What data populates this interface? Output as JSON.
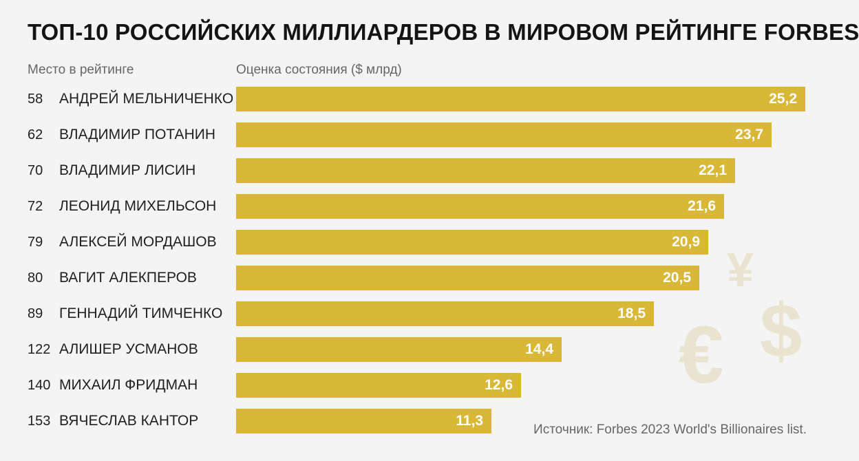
{
  "title": "ТОП-10 РОССИЙСКИХ МИЛЛИАРДЕРОВ В МИРОВОМ РЕЙТИНГЕ FORBES",
  "rank_header": "Место в рейтинге",
  "value_header": "Оценка состояния ($ млрд)",
  "source": "Источник: Forbes 2023 World's Billionaires list.",
  "decor_icons": [
    {
      "name": "yen-icon",
      "glyph": "¥"
    },
    {
      "name": "dollar-icon",
      "glyph": "$"
    },
    {
      "name": "euro-icon",
      "glyph": "€"
    }
  ],
  "colors": {
    "bar": "#d9b737",
    "background": "#f4f4f4"
  },
  "chart_data": {
    "type": "bar",
    "orientation": "horizontal",
    "title": "ТОП-10 РОССИЙСКИХ МИЛЛИАРДЕРОВ В МИРОВОМ РЕЙТИНГЕ FORBES",
    "xlabel": "Оценка состояния ($ млрд)",
    "ylabel": "Место в рейтинге",
    "xlim": [
      0,
      25.2
    ],
    "grid": false,
    "ranks": [
      "58",
      "62",
      "70",
      "72",
      "79",
      "80",
      "89",
      "122",
      "140",
      "153"
    ],
    "categories": [
      "АНДРЕЙ МЕЛЬНИЧЕНКО",
      "ВЛАДИМИР ПОТАНИН",
      "ВЛАДИМИР ЛИСИН",
      "ЛЕОНИД МИХЕЛЬСОН",
      "АЛЕКСЕЙ МОРДАШОВ",
      "ВАГИТ АЛЕКПЕРОВ",
      "ГЕННАДИЙ ТИМЧЕНКО",
      "АЛИШЕР УСМАНОВ",
      "МИХАИЛ ФРИДМАН",
      "ВЯЧЕСЛАВ КАНТОР"
    ],
    "values": [
      25.2,
      23.7,
      22.1,
      21.6,
      20.9,
      20.5,
      18.5,
      14.4,
      12.6,
      11.3
    ],
    "value_labels": [
      "25,2",
      "23,7",
      "22,1",
      "21,6",
      "20,9",
      "20,5",
      "18,5",
      "14,4",
      "12,6",
      "11,3"
    ]
  }
}
